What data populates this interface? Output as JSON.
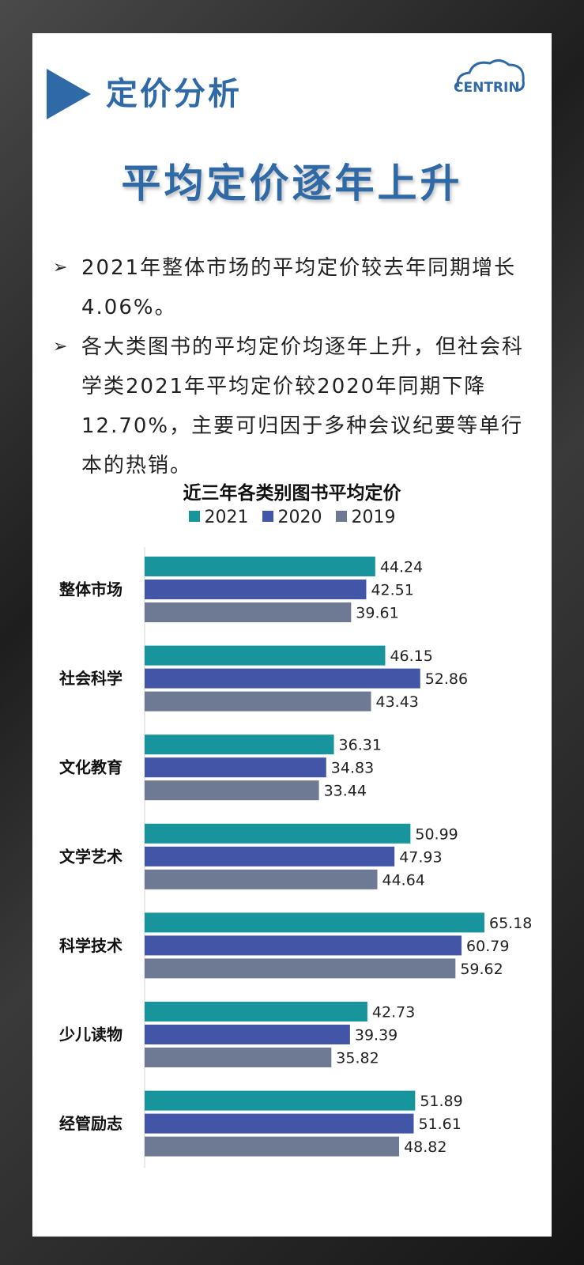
{
  "header": {
    "title": "定价分析",
    "logo_text": "CENTRIN"
  },
  "big_title": "平均定价逐年上升",
  "bullets": [
    "2021年整体市场的平均定价较去年同期增长4.06%。",
    "各大类图书的平均定价均逐年上升，但社会科学类2021年平均定价较2020年同期下降12.70%，主要可归因于多种会议纪要等单行本的热销。"
  ],
  "bullet_marker": "➢",
  "chart_data": {
    "type": "bar",
    "orientation": "horizontal",
    "title": "近三年各类别图书平均定价",
    "categories": [
      "整体市场",
      "社会科学",
      "文化教育",
      "文学艺术",
      "科学技术",
      "少儿读物",
      "经管励志"
    ],
    "series": [
      {
        "name": "2021",
        "color": "#17949c",
        "values": [
          44.24,
          46.15,
          36.31,
          50.99,
          65.18,
          42.73,
          51.89
        ]
      },
      {
        "name": "2020",
        "color": "#4255a6",
        "values": [
          42.51,
          52.86,
          34.83,
          47.93,
          60.79,
          39.39,
          51.61
        ]
      },
      {
        "name": "2019",
        "color": "#6e7a93",
        "values": [
          39.61,
          43.43,
          33.44,
          44.64,
          59.62,
          35.82,
          48.82
        ]
      }
    ],
    "value_labels": [
      [
        "44.24",
        "42.51",
        "39.61"
      ],
      [
        "46.15",
        "52.86",
        "43.43"
      ],
      [
        "36.31",
        "34.83",
        "33.44"
      ],
      [
        "50.99",
        "47.93",
        "44.64"
      ],
      [
        "65.18",
        "60.79",
        "59.62"
      ],
      [
        "42.73",
        "39.39",
        "35.82"
      ],
      [
        "51.89",
        "51.61",
        "48.82"
      ]
    ],
    "xlim": [
      0,
      70
    ],
    "legend_position": "top",
    "grid": false
  }
}
